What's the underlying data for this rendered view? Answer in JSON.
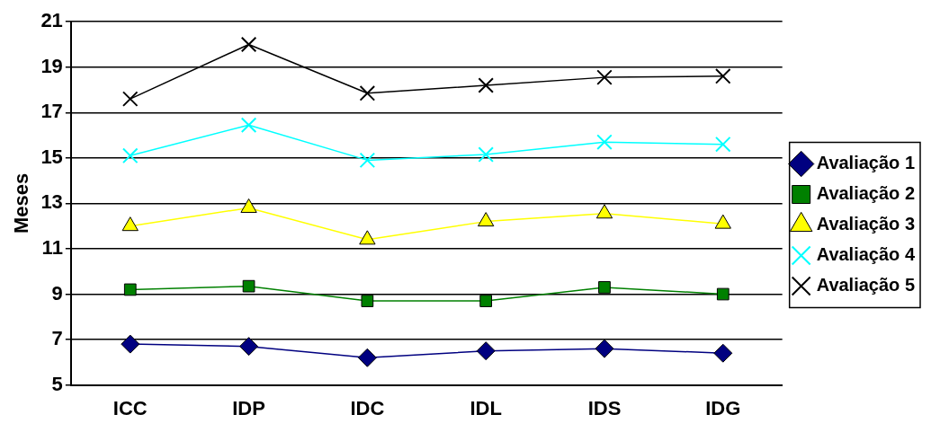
{
  "chart_data": {
    "type": "line",
    "ylabel": "Meses",
    "categories": [
      "ICC",
      "IDP",
      "IDC",
      "IDL",
      "IDS",
      "IDG"
    ],
    "ylim": [
      5,
      21
    ],
    "yticks": [
      5,
      7,
      9,
      11,
      13,
      15,
      17,
      19,
      21
    ],
    "grid": "y",
    "legend": "right",
    "line_style": "solid",
    "series": [
      {
        "name": "Avaliação 1",
        "color": "#000080",
        "marker": "diamond",
        "values": [
          6.8,
          6.7,
          6.2,
          6.5,
          6.6,
          6.4
        ]
      },
      {
        "name": "Avaliação 2",
        "color": "#008000",
        "marker": "square",
        "values": [
          9.2,
          9.35,
          8.7,
          8.7,
          9.3,
          9.0
        ]
      },
      {
        "name": "Avaliação 3",
        "color": "#ffff00",
        "marker": "triangle",
        "values": [
          12.0,
          12.8,
          11.4,
          12.2,
          12.55,
          12.1
        ]
      },
      {
        "name": "Avaliação 4",
        "color": "#00ffff",
        "marker": "cross",
        "values": [
          15.1,
          16.45,
          14.9,
          15.15,
          15.7,
          15.6
        ]
      },
      {
        "name": "Avaliação 5",
        "color": "#000000",
        "marker": "cross",
        "values": [
          17.6,
          20.0,
          17.85,
          18.2,
          18.55,
          18.6
        ]
      }
    ]
  }
}
